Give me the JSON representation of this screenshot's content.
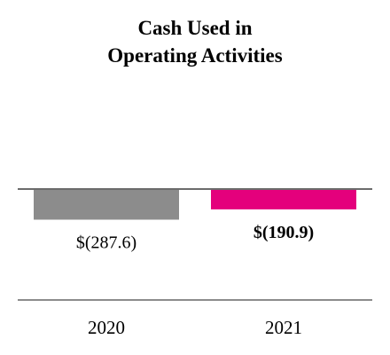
{
  "chart_data": {
    "type": "bar",
    "title_lines": [
      "Cash Used in",
      "Operating Activities"
    ],
    "categories": [
      "2020",
      "2021"
    ],
    "values": [
      -287.6,
      -190.9
    ],
    "data_labels": [
      "$(287.6)",
      "$(190.9)"
    ],
    "colors": [
      "#8c8c8c",
      "#e4007c"
    ],
    "bold_label": [
      false,
      true
    ],
    "ylim": [
      -800,
      0
    ],
    "xlabel": "",
    "ylabel": "",
    "grid": false,
    "legend": "none"
  }
}
